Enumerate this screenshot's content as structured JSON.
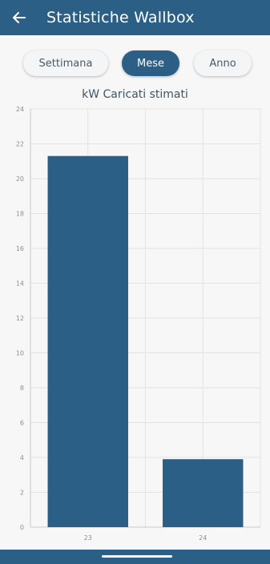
{
  "header": {
    "title": "Statistiche Wallbox",
    "back_icon": "arrow-left-icon"
  },
  "tabs": [
    {
      "label": "Settimana",
      "active": false
    },
    {
      "label": "Mese",
      "active": true
    },
    {
      "label": "Anno",
      "active": false
    }
  ],
  "colors": {
    "primary": "#2b5f86",
    "background": "#f7f7f7",
    "grid": "#e3e3e3"
  },
  "chart_data": {
    "type": "bar",
    "title": "kW Caricati stimati",
    "categories": [
      "23",
      "24"
    ],
    "values": [
      21.3,
      3.9
    ],
    "ylim": [
      0,
      24
    ],
    "yticks": [
      0,
      2,
      4,
      6,
      8,
      10,
      12,
      14,
      16,
      18,
      20,
      22,
      24
    ],
    "grid": true
  }
}
